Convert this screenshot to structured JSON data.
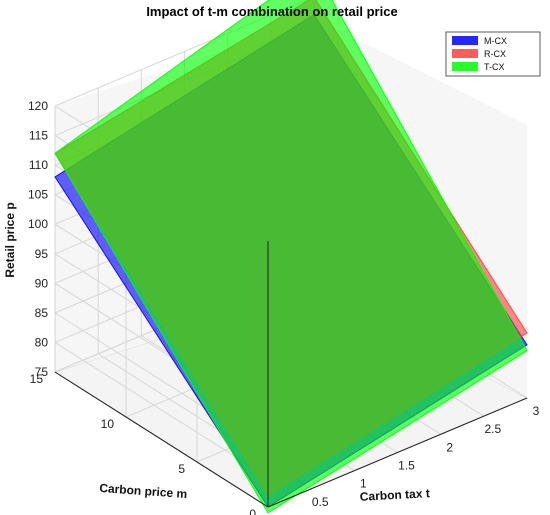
{
  "chart_data": {
    "type": "surface",
    "title": "Impact of t-m combination on retail price",
    "xlabel": "Carbon tax t",
    "ylabel": "Carbon price m",
    "zlabel": "Retail price p",
    "xlim": [
      0,
      3
    ],
    "ylim": [
      0,
      15
    ],
    "zlim": [
      75,
      120
    ],
    "x_ticks": [
      "0",
      "0.5",
      "1",
      "1.5",
      "2",
      "2.5",
      "3"
    ],
    "y_ticks": [
      "0",
      "5",
      "10",
      "15"
    ],
    "z_ticks": [
      "75",
      "80",
      "85",
      "90",
      "95",
      "100",
      "105",
      "110",
      "115",
      "120"
    ],
    "grid": true,
    "legend_position": "top-right",
    "series": [
      {
        "name": "M-CX",
        "color": "#0000ff",
        "corners": {
          "t0_m0": 75,
          "t3_m0": 84,
          "t0_m15": 108,
          "t3_m15": 117
        }
      },
      {
        "name": "R-CX",
        "color": "#ff4040",
        "corners": {
          "t0_m0": 77,
          "t3_m0": 86,
          "t0_m15": 112,
          "t3_m15": 120
        }
      },
      {
        "name": "T-CX",
        "color": "#00ff00",
        "corners": {
          "t0_m0": 74,
          "t3_m0": 83,
          "t0_m15": 112,
          "t3_m15": 125
        }
      }
    ]
  }
}
